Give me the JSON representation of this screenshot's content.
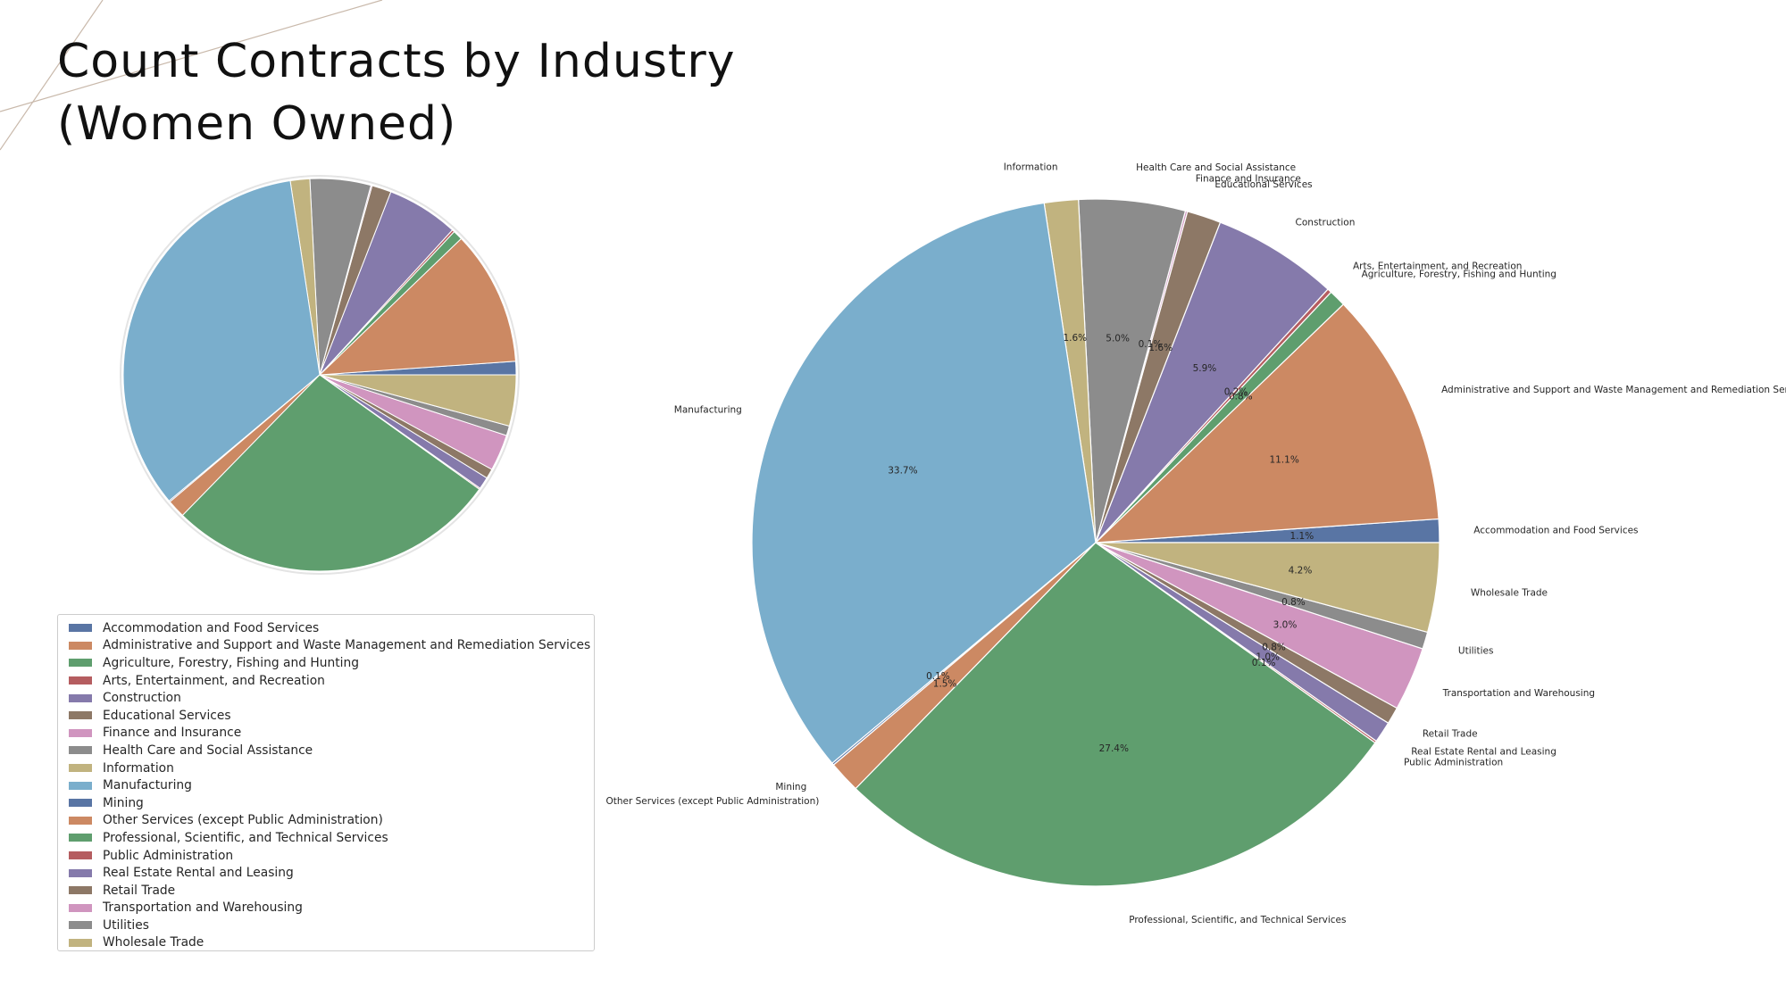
{
  "title_lines": [
    "Count Contracts by Industry",
    "(Women Owned)"
  ],
  "chart_data": [
    {
      "type": "pie",
      "title": "Count Contracts by Industry (Women Owned)",
      "legend_position": "bottom-left",
      "categories": [
        "Accommodation and Food Services",
        "Administrative and Support and Waste Management and Remediation Services",
        "Agriculture, Forestry, Fishing and Hunting",
        "Arts, Entertainment, and Recreation",
        "Construction",
        "Educational Services",
        "Finance and Insurance",
        "Health Care and Social Assistance",
        "Information",
        "Manufacturing",
        "Mining",
        "Other Services (except Public Administration)",
        "Professional, Scientific, and Technical Services",
        "Public Administration",
        "Real Estate Rental and Leasing",
        "Retail Trade",
        "Transportation and Warehousing",
        "Utilities",
        "Wholesale Trade"
      ],
      "values": [
        1.1,
        11.1,
        0.8,
        0.2,
        5.9,
        1.6,
        0.1,
        5.0,
        1.6,
        33.7,
        0.1,
        1.5,
        27.4,
        0.1,
        1.0,
        0.8,
        3.0,
        0.8,
        4.2
      ],
      "value_labels": [
        "1.1%",
        "11.1%",
        "0.8%",
        "0.2%",
        "5.9%",
        "1.6%",
        "0.1%",
        "5.0%",
        "1.6%",
        "33.7%",
        "0.1%",
        "1.5%",
        "27.4%",
        "0.1%",
        "1.0%",
        "0.8%",
        "3.0%",
        "0.8%",
        "4.2%"
      ],
      "colors": [
        "#5975a4",
        "#cc8963",
        "#5f9e6e",
        "#b55d60",
        "#857aab",
        "#8d7866",
        "#d095bf",
        "#8c8c8c",
        "#c1b37f",
        "#7aaecc",
        "#5975a4",
        "#cc8963",
        "#5f9e6e",
        "#b55d60",
        "#857aab",
        "#8d7866",
        "#d095bf",
        "#8c8c8c",
        "#c1b37f"
      ]
    }
  ]
}
